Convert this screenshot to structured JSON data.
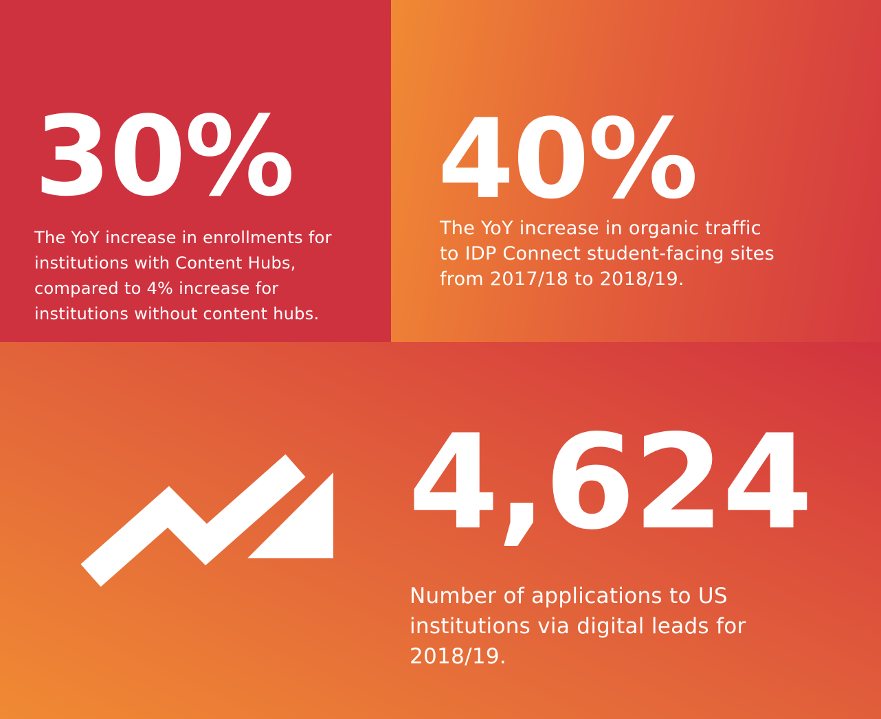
{
  "stats": [
    {
      "value": "30%",
      "description": "The YoY increase in enrollments for institutions with Content Hubs, compared to 4% increase for institutions without content hubs."
    },
    {
      "value": "40%",
      "description": "The YoY increase in organic traffic to IDP Connect student-facing sites from 2017/18 to 2018/19."
    },
    {
      "value": "4,624",
      "description": "Number of applications to US institutions via digital leads for 2018/19."
    }
  ],
  "icons": {
    "growth_arrow": "trending-up-arrow-icon"
  },
  "colors": {
    "red": "#cf323f",
    "orange": "#f08a34",
    "text": "#ffffff"
  }
}
